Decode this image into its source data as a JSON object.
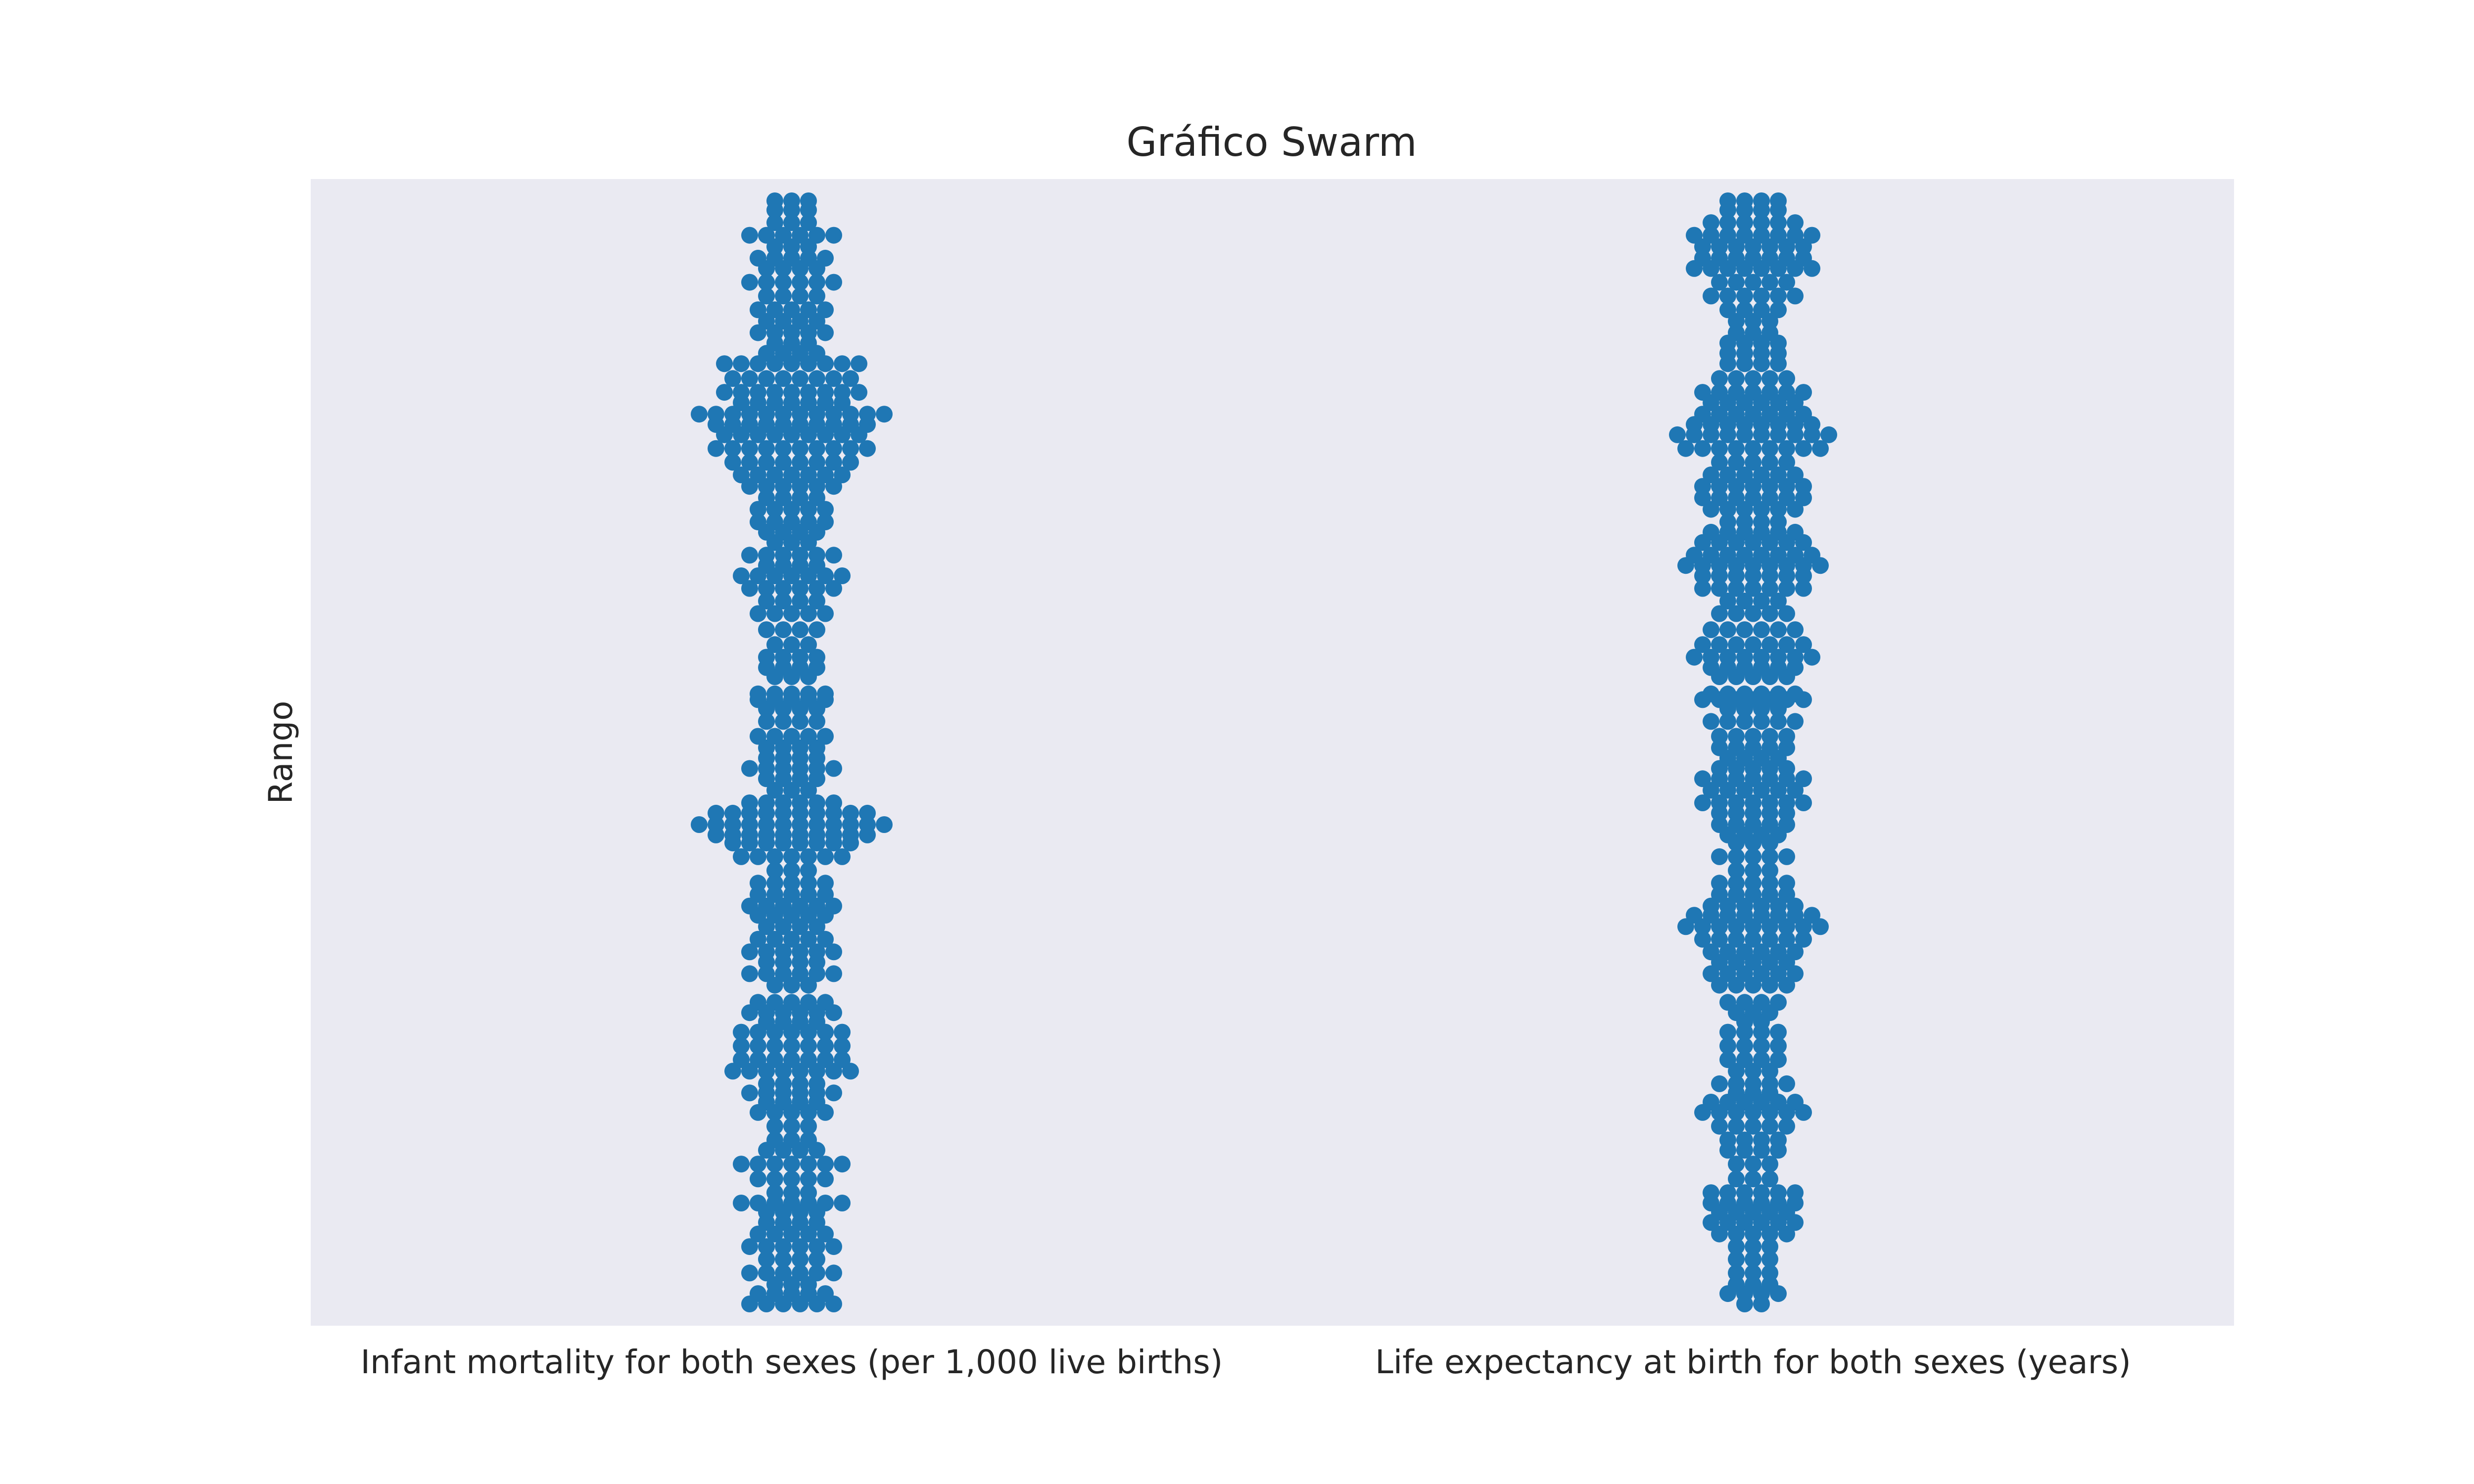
{
  "chart_data": {
    "type": "scatter",
    "subtype": "swarm",
    "title": "Gráfico Swarm",
    "xlabel": "",
    "ylabel": "Rango",
    "categories": [
      "Infant mortality for both sexes (per 1,000 live births)",
      "Life expectancy at birth for both sexes (years)"
    ],
    "y_ticks_visible": false,
    "ylim": [
      0,
      1
    ],
    "grid": false,
    "legend": "none",
    "point_color": "#1f77b4",
    "background_color": "#eaeaf2",
    "series": [
      {
        "values": [
          0.019,
          0.028,
          0.036,
          0.046,
          0.058,
          0.069,
          0.08,
          0.09,
          0.099,
          0.107,
          0.116,
          0.128,
          0.141,
          0.153,
          0.162,
          0.174,
          0.186,
          0.195,
          0.203,
          0.211,
          0.222,
          0.232,
          0.244,
          0.256,
          0.265,
          0.273,
          0.282,
          0.297,
          0.307,
          0.317,
          0.326,
          0.337,
          0.348,
          0.358,
          0.366,
          0.376,
          0.386,
          0.397,
          0.409,
          0.421,
          0.428,
          0.437,
          0.447,
          0.456,
          0.467,
          0.477,
          0.486,
          0.495,
          0.504,
          0.514,
          0.527,
          0.538,
          0.546,
          0.551,
          0.566,
          0.574,
          0.583,
          0.594,
          0.607,
          0.621,
          0.632,
          0.643,
          0.654,
          0.663,
          0.672,
          0.683,
          0.692,
          0.701,
          0.712,
          0.722,
          0.732,
          0.742,
          0.753,
          0.765,
          0.777,
          0.786,
          0.795,
          0.805,
          0.814,
          0.826,
          0.839,
          0.848,
          0.857,
          0.866,
          0.876,
          0.886,
          0.898,
          0.91,
          0.922,
          0.931,
          0.941,
          0.951,
          0.962,
          0.973,
          0.981
        ],
        "counts": [
          6,
          5,
          3,
          6,
          4,
          6,
          5,
          4,
          4,
          7,
          3,
          5,
          7,
          4,
          3,
          3,
          5,
          4,
          6,
          4,
          8,
          7,
          7,
          7,
          4,
          6,
          5,
          3,
          6,
          4,
          6,
          5,
          4,
          5,
          6,
          5,
          5,
          3,
          7,
          8,
          10,
          12,
          10,
          6,
          3,
          4,
          6,
          4,
          4,
          5,
          4,
          4,
          5,
          5,
          3,
          4,
          4,
          3,
          4,
          5,
          4,
          6,
          7,
          4,
          6,
          3,
          4,
          5,
          5,
          4,
          6,
          7,
          8,
          10,
          9,
          10,
          12,
          7,
          9,
          8,
          9,
          4,
          3,
          5,
          4,
          5,
          4,
          6,
          4,
          5,
          3,
          6,
          3,
          3,
          3
        ]
      },
      {
        "values": [
          0.019,
          0.028,
          0.036,
          0.046,
          0.058,
          0.069,
          0.08,
          0.09,
          0.099,
          0.107,
          0.116,
          0.128,
          0.141,
          0.153,
          0.162,
          0.174,
          0.186,
          0.195,
          0.203,
          0.211,
          0.222,
          0.232,
          0.244,
          0.256,
          0.265,
          0.273,
          0.282,
          0.297,
          0.307,
          0.317,
          0.326,
          0.337,
          0.348,
          0.358,
          0.366,
          0.376,
          0.386,
          0.397,
          0.409,
          0.421,
          0.428,
          0.437,
          0.447,
          0.456,
          0.467,
          0.477,
          0.486,
          0.495,
          0.504,
          0.514,
          0.527,
          0.538,
          0.546,
          0.551,
          0.566,
          0.574,
          0.583,
          0.594,
          0.607,
          0.621,
          0.632,
          0.643,
          0.654,
          0.663,
          0.672,
          0.683,
          0.692,
          0.701,
          0.712,
          0.722,
          0.732,
          0.742,
          0.753,
          0.765,
          0.777,
          0.786,
          0.795,
          0.805,
          0.814,
          0.826,
          0.839,
          0.848,
          0.857,
          0.866,
          0.876,
          0.886,
          0.898,
          0.91,
          0.922,
          0.931,
          0.941,
          0.951,
          0.962,
          0.973,
          0.981
        ],
        "counts": [
          2,
          4,
          3,
          3,
          3,
          3,
          5,
          6,
          5,
          6,
          6,
          3,
          3,
          4,
          4,
          5,
          7,
          6,
          3,
          5,
          3,
          4,
          4,
          4,
          2,
          3,
          4,
          5,
          6,
          5,
          6,
          7,
          9,
          8,
          6,
          5,
          5,
          3,
          5,
          3,
          4,
          5,
          5,
          7,
          6,
          7,
          5,
          4,
          5,
          5,
          6,
          4,
          7,
          6,
          5,
          6,
          8,
          7,
          6,
          5,
          4,
          7,
          7,
          9,
          8,
          7,
          6,
          4,
          6,
          7,
          7,
          6,
          5,
          9,
          10,
          8,
          7,
          6,
          7,
          5,
          4,
          4,
          4,
          3,
          3,
          4,
          6,
          5,
          8,
          7,
          7,
          8,
          6,
          4,
          4
        ]
      }
    ]
  }
}
